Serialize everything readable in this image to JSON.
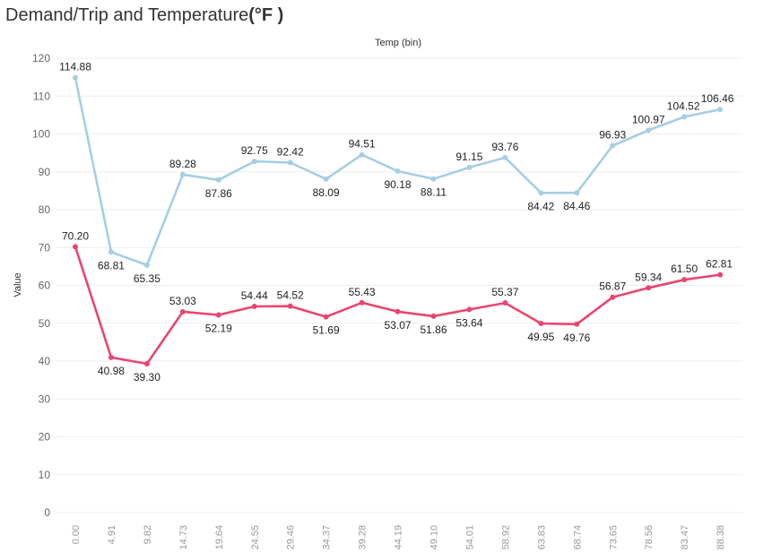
{
  "chart_data": {
    "type": "line",
    "title": "Demand/Trip and Temperature",
    "title_unit": "(°F )",
    "xlabel": "Temp (bin)",
    "ylabel": "Value",
    "x": [
      "0.00",
      "4.91",
      "9.82",
      "14.73",
      "19.64",
      "24.55",
      "29.46",
      "34.37",
      "39.28",
      "44.19",
      "49.10",
      "54.01",
      "58.92",
      "63.83",
      "68.74",
      "73.65",
      "78.56",
      "83.47",
      "88.38"
    ],
    "ylim": [
      0,
      120
    ],
    "yticks": [
      0,
      10,
      20,
      30,
      40,
      50,
      60,
      70,
      80,
      90,
      100,
      110,
      120
    ],
    "grid": true,
    "series": [
      {
        "color": "#a6cee3",
        "values": [
          114.88,
          68.81,
          65.35,
          89.28,
          87.86,
          92.75,
          92.42,
          88.09,
          94.51,
          90.18,
          88.11,
          91.15,
          93.76,
          84.42,
          84.46,
          96.93,
          100.97,
          104.52,
          106.46
        ],
        "labels": [
          "114.88",
          "68.81",
          "65.35",
          "89.28",
          "87.86",
          "92.75",
          "92.42",
          "88.09",
          "94.51",
          "90.18",
          "88.11",
          "91.15",
          "93.76",
          "84.42",
          "84.46",
          "96.93",
          "100.97",
          "104.52",
          "106.46"
        ]
      },
      {
        "color": "#e8466e",
        "values": [
          70.2,
          40.98,
          39.3,
          53.03,
          52.19,
          54.44,
          54.52,
          51.69,
          55.43,
          53.07,
          51.86,
          53.64,
          55.37,
          49.95,
          49.76,
          56.87,
          59.34,
          61.5,
          62.81
        ],
        "labels": [
          "70.20",
          "40.98",
          "39.30",
          "53.03",
          "52.19",
          "54.44",
          "54.52",
          "51.69",
          "55.43",
          "53.07",
          "51.86",
          "53.64",
          "55.37",
          "49.95",
          "49.76",
          "56.87",
          "59.34",
          "61.50",
          "62.81"
        ]
      }
    ]
  }
}
